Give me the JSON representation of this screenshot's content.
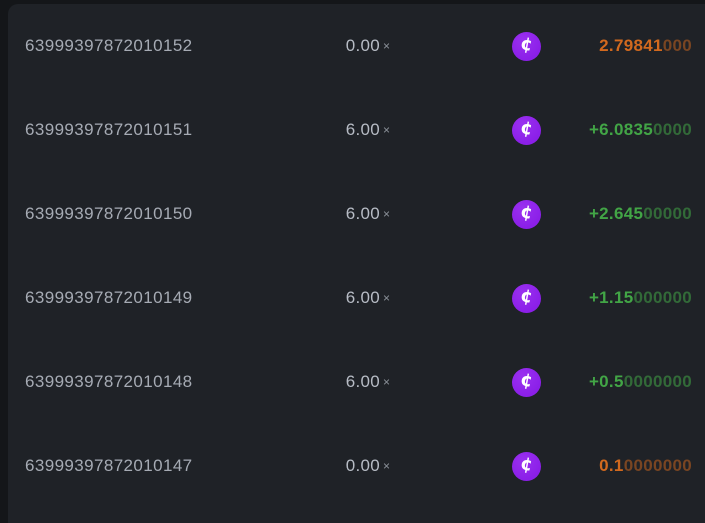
{
  "colors": {
    "win": "#42a546",
    "loss": "#d2691e",
    "coin": "#8b1fe8",
    "coin_light": "#9a30f0",
    "panel_bg": "#1f2227",
    "page_bg": "#141619"
  },
  "table": {
    "multiply_symbol": "×",
    "coin_symbol": "¢",
    "rows": [
      {
        "id": "63999397872010152",
        "multiplier": "0.00",
        "amount_main": "2.79841",
        "amount_zeros": "000",
        "result": "loss"
      },
      {
        "id": "63999397872010151",
        "multiplier": "6.00",
        "amount_main": "+6.0835",
        "amount_zeros": "0000",
        "result": "win"
      },
      {
        "id": "63999397872010150",
        "multiplier": "6.00",
        "amount_main": "+2.645",
        "amount_zeros": "00000",
        "result": "win"
      },
      {
        "id": "63999397872010149",
        "multiplier": "6.00",
        "amount_main": "+1.15",
        "amount_zeros": "000000",
        "result": "win"
      },
      {
        "id": "63999397872010148",
        "multiplier": "6.00",
        "amount_main": "+0.5",
        "amount_zeros": "0000000",
        "result": "win"
      },
      {
        "id": "63999397872010147",
        "multiplier": "0.00",
        "amount_main": "0.1",
        "amount_zeros": "0000000",
        "result": "loss"
      }
    ]
  }
}
